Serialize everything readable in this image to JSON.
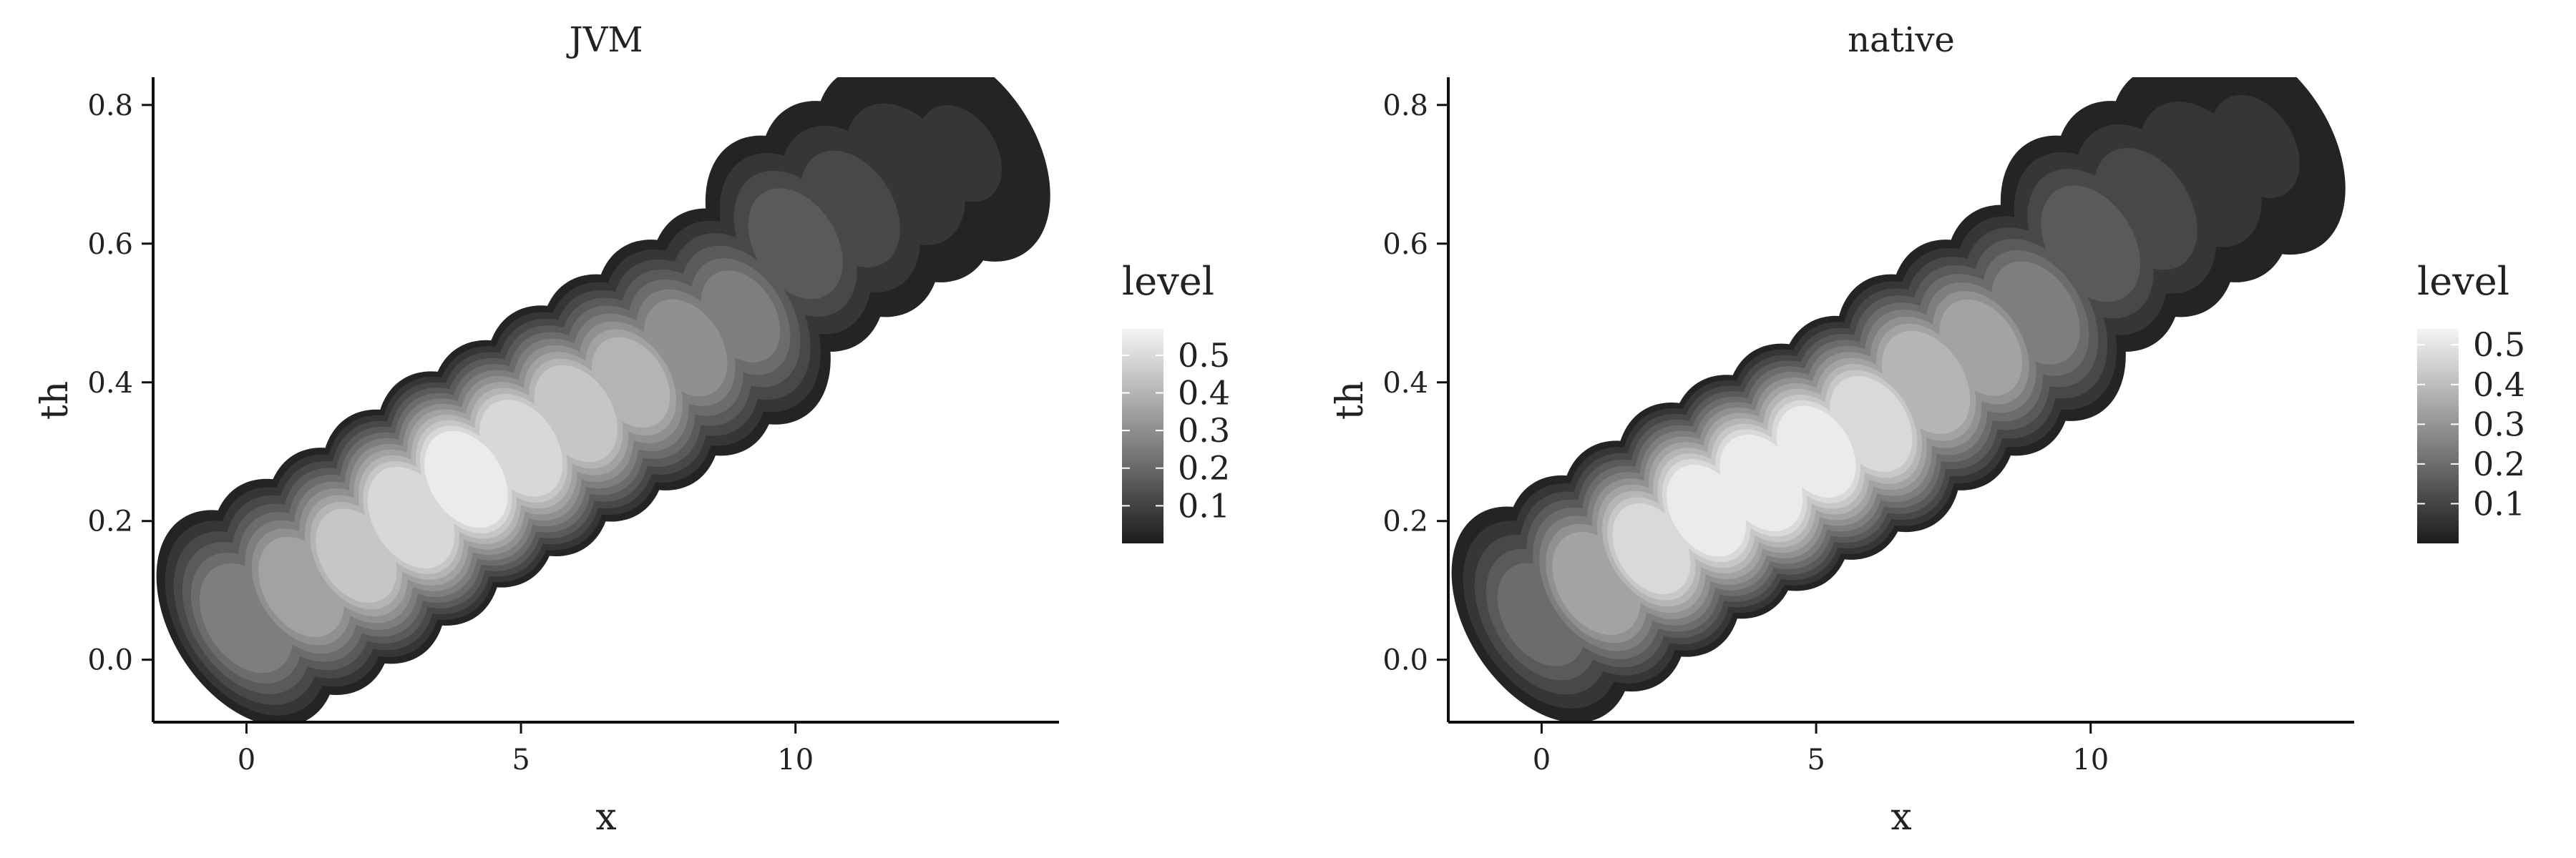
{
  "chart_data": [
    {
      "type": "contour",
      "title": "JVM",
      "xlabel": "x",
      "ylabel": "th",
      "xlim": [
        -1.7,
        14.8
      ],
      "ylim": [
        -0.09,
        0.84
      ],
      "xticks": [
        0,
        5,
        10
      ],
      "yticks": [
        0.0,
        0.2,
        0.4,
        0.6,
        0.8
      ],
      "x_tick_labels": [
        "0",
        "5",
        "10"
      ],
      "y_tick_labels": [
        "0.0",
        "0.2",
        "0.4",
        "0.6",
        "0.8"
      ],
      "legend": {
        "title": "level",
        "position": "right",
        "range": [
          0.0,
          0.57
        ],
        "tick_values": [
          0.1,
          0.2,
          0.3,
          0.4,
          0.5
        ],
        "tick_labels": [
          "0.1",
          "0.2",
          "0.3",
          "0.4",
          "0.5"
        ],
        "color_low": "#1c1c1c",
        "color_high": "#f5f5f5"
      },
      "bands": 12,
      "centers": [
        {
          "x": 0,
          "y": 0.06,
          "level": 0.28
        },
        {
          "x": 1,
          "y": 0.105,
          "level": 0.36
        },
        {
          "x": 2,
          "y": 0.15,
          "level": 0.44
        },
        {
          "x": 3,
          "y": 0.205,
          "level": 0.52
        },
        {
          "x": 4,
          "y": 0.26,
          "level": 0.55
        },
        {
          "x": 5,
          "y": 0.305,
          "level": 0.5
        },
        {
          "x": 6,
          "y": 0.355,
          "level": 0.45
        },
        {
          "x": 7,
          "y": 0.4,
          "level": 0.38
        },
        {
          "x": 8,
          "y": 0.45,
          "level": 0.3
        },
        {
          "x": 9,
          "y": 0.495,
          "level": 0.24
        },
        {
          "x": 10,
          "y": 0.6,
          "level": 0.17
        },
        {
          "x": 11,
          "y": 0.65,
          "level": 0.12
        },
        {
          "x": 12,
          "y": 0.7,
          "level": 0.08
        },
        {
          "x": 13,
          "y": 0.73,
          "level": 0.05
        }
      ]
    },
    {
      "type": "contour",
      "title": "native",
      "xlabel": "x",
      "ylabel": "th",
      "xlim": [
        -1.7,
        14.8
      ],
      "ylim": [
        -0.09,
        0.84
      ],
      "xticks": [
        0,
        5,
        10
      ],
      "yticks": [
        0.0,
        0.2,
        0.4,
        0.6,
        0.8
      ],
      "x_tick_labels": [
        "0",
        "5",
        "10"
      ],
      "y_tick_labels": [
        "0.0",
        "0.2",
        "0.4",
        "0.6",
        "0.8"
      ],
      "legend": {
        "title": "level",
        "position": "right",
        "range": [
          0.0,
          0.54
        ],
        "tick_values": [
          0.1,
          0.2,
          0.3,
          0.4,
          0.5
        ],
        "tick_labels": [
          "0.1",
          "0.2",
          "0.3",
          "0.4",
          "0.5"
        ],
        "color_low": "#1c1c1c",
        "color_high": "#f5f5f5"
      },
      "bands": 12,
      "centers": [
        {
          "x": 0,
          "y": 0.065,
          "level": 0.2
        },
        {
          "x": 1,
          "y": 0.11,
          "level": 0.35
        },
        {
          "x": 2,
          "y": 0.16,
          "level": 0.45
        },
        {
          "x": 3,
          "y": 0.215,
          "level": 0.5
        },
        {
          "x": 4,
          "y": 0.255,
          "level": 0.52
        },
        {
          "x": 5,
          "y": 0.3,
          "level": 0.5
        },
        {
          "x": 6,
          "y": 0.34,
          "level": 0.47
        },
        {
          "x": 7,
          "y": 0.4,
          "level": 0.4
        },
        {
          "x": 8,
          "y": 0.45,
          "level": 0.33
        },
        {
          "x": 9,
          "y": 0.5,
          "level": 0.25
        },
        {
          "x": 10,
          "y": 0.6,
          "level": 0.17
        },
        {
          "x": 11,
          "y": 0.65,
          "level": 0.12
        },
        {
          "x": 12,
          "y": 0.7,
          "level": 0.08
        },
        {
          "x": 13,
          "y": 0.74,
          "level": 0.05
        }
      ]
    }
  ]
}
